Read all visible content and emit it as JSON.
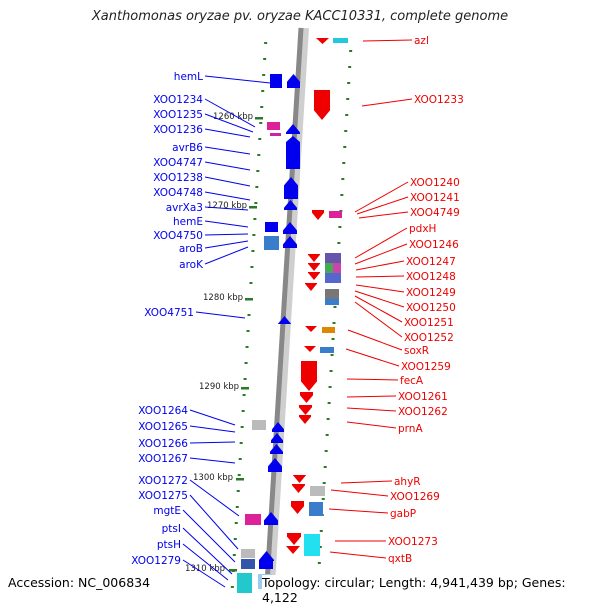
{
  "title": "Xanthomonas oryzae pv. oryzae KACC10331, complete genome",
  "footer": {
    "accession": "Accession: NC_006834",
    "summary": "Topology: circular; Length: 4,941,439 bp; Genes: 4,122"
  },
  "colors": {
    "left_strand": "#0000ee",
    "right_strand": "#ee0000",
    "scale_ticks": "#2a7a2a",
    "backbone": "#888888"
  },
  "scale_labels": [
    "1260 kbp",
    "1270 kbp",
    "1280 kbp",
    "1290 kbp",
    "1300 kbp",
    "1310 kbp"
  ],
  "left_genes": [
    "hemL",
    "XOO1234",
    "XOO1235",
    "XOO1236",
    "avrB6",
    "XOO4747",
    "XOO1238",
    "XOO4748",
    "avrXa3",
    "hemE",
    "XOO4750",
    "aroB",
    "aroK",
    "XOO4751",
    "XOO1264",
    "XOO1265",
    "XOO1266",
    "XOO1267",
    "XOO1272",
    "XOO1275",
    "mgtE",
    "ptsI",
    "ptsH",
    "XOO1279"
  ],
  "right_genes": [
    "azl",
    "XOO1233",
    "XOO1240",
    "XOO1241",
    "XOO4749",
    "pdxH",
    "XOO1246",
    "XOO1247",
    "XOO1248",
    "XOO1249",
    "XOO1250",
    "XOO1251",
    "XOO1252",
    "soxR",
    "XOO1259",
    "fecA",
    "XOO1261",
    "XOO1262",
    "prnA",
    "ahyR",
    "XOO1269",
    "gabP",
    "XOO1273",
    "qxtB"
  ]
}
